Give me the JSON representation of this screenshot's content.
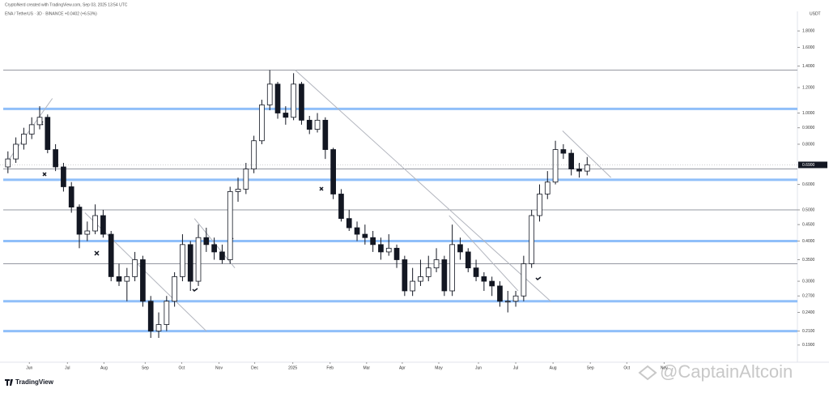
{
  "chart_data": {
    "type": "candlestick",
    "header": "CryptoNerd created with TradingView.com, Sep 03, 2025 13:54 UTC",
    "symbol_info": "ENA / TetherUS · 3D · BINANCE +0.0402 (+6.53%)",
    "currency": "USDT",
    "watermark": "@CaptainAltcoin",
    "logo": "TradingView",
    "log_scale": true,
    "grid": false,
    "up_color": "#ffffff",
    "down_color": "#131722",
    "open": [
      0.68,
      0.72,
      0.8,
      0.86,
      0.92,
      0.97,
      0.77,
      0.68,
      0.59,
      0.51,
      0.42,
      0.43,
      0.48,
      0.42,
      0.31,
      0.3,
      0.31,
      0.35,
      0.26,
      0.21,
      0.22,
      0.26,
      0.31,
      0.39,
      0.3,
      0.41,
      0.39,
      0.37,
      0.35,
      0.57,
      0.58,
      0.67,
      0.82,
      1.06,
      1.23,
      1.0,
      0.97,
      1.23,
      0.95,
      0.89,
      0.95,
      0.77,
      0.56,
      0.47,
      0.44,
      0.42,
      0.41,
      0.39,
      0.37,
      0.38,
      0.35,
      0.28,
      0.3,
      0.31,
      0.33,
      0.35,
      0.28,
      0.39,
      0.37,
      0.33,
      0.31,
      0.3,
      0.29,
      0.26,
      0.26,
      0.27,
      0.34,
      0.48,
      0.56,
      0.61,
      0.77,
      0.75,
      0.67,
      0.66
    ],
    "high": [
      0.76,
      0.84,
      0.9,
      0.97,
      1.05,
      0.99,
      0.8,
      0.7,
      0.61,
      0.52,
      0.46,
      0.52,
      0.5,
      0.43,
      0.34,
      0.33,
      0.37,
      0.36,
      0.27,
      0.24,
      0.27,
      0.32,
      0.42,
      0.4,
      0.45,
      0.44,
      0.41,
      0.39,
      0.59,
      0.63,
      0.7,
      0.85,
      1.1,
      1.36,
      1.25,
      1.05,
      1.33,
      1.25,
      0.98,
      1.0,
      0.97,
      0.78,
      0.58,
      0.5,
      0.46,
      0.45,
      0.43,
      0.41,
      0.42,
      0.39,
      0.36,
      0.33,
      0.35,
      0.36,
      0.38,
      0.36,
      0.45,
      0.41,
      0.38,
      0.35,
      0.32,
      0.31,
      0.3,
      0.28,
      0.28,
      0.36,
      0.5,
      0.6,
      0.66,
      0.82,
      0.8,
      0.77,
      0.7,
      0.73
    ],
    "low": [
      0.65,
      0.7,
      0.77,
      0.83,
      0.89,
      0.75,
      0.66,
      0.57,
      0.49,
      0.38,
      0.4,
      0.42,
      0.41,
      0.3,
      0.29,
      0.26,
      0.3,
      0.25,
      0.2,
      0.2,
      0.21,
      0.25,
      0.3,
      0.28,
      0.29,
      0.37,
      0.35,
      0.34,
      0.34,
      0.53,
      0.56,
      0.65,
      0.8,
      1.02,
      0.96,
      0.92,
      0.95,
      0.92,
      0.86,
      0.87,
      0.72,
      0.54,
      0.46,
      0.43,
      0.4,
      0.39,
      0.37,
      0.35,
      0.36,
      0.33,
      0.27,
      0.27,
      0.29,
      0.3,
      0.32,
      0.27,
      0.27,
      0.35,
      0.32,
      0.3,
      0.28,
      0.27,
      0.25,
      0.24,
      0.25,
      0.26,
      0.33,
      0.46,
      0.54,
      0.6,
      0.72,
      0.64,
      0.63,
      0.64
    ],
    "close": [
      0.72,
      0.8,
      0.86,
      0.92,
      0.97,
      0.77,
      0.68,
      0.59,
      0.51,
      0.42,
      0.43,
      0.48,
      0.42,
      0.31,
      0.3,
      0.31,
      0.35,
      0.26,
      0.21,
      0.22,
      0.26,
      0.31,
      0.39,
      0.3,
      0.41,
      0.39,
      0.37,
      0.35,
      0.57,
      0.58,
      0.67,
      0.82,
      1.06,
      1.23,
      1.0,
      0.97,
      1.23,
      0.95,
      0.89,
      0.95,
      0.77,
      0.56,
      0.47,
      0.44,
      0.42,
      0.41,
      0.39,
      0.37,
      0.38,
      0.35,
      0.28,
      0.3,
      0.31,
      0.33,
      0.35,
      0.28,
      0.39,
      0.37,
      0.33,
      0.31,
      0.3,
      0.29,
      0.26,
      0.26,
      0.27,
      0.34,
      0.48,
      0.56,
      0.61,
      0.77,
      0.75,
      0.67,
      0.66,
      0.69
    ],
    "ylim": [
      0.17,
      2.0
    ],
    "yticks": [
      {
        "value": 1.8,
        "label": "1.8000"
      },
      {
        "value": 1.6,
        "label": "1.6000"
      },
      {
        "value": 1.4,
        "label": "1.4000"
      },
      {
        "value": 1.2,
        "label": "1.2000"
      },
      {
        "value": 1.0,
        "label": "1.0000"
      },
      {
        "value": 0.9,
        "label": "0.9000"
      },
      {
        "value": 0.8,
        "label": "0.8000"
      },
      {
        "value": 0.6,
        "label": "0.6000"
      },
      {
        "value": 0.5,
        "label": "0.5000"
      },
      {
        "value": 0.45,
        "label": "0.4500"
      },
      {
        "value": 0.4,
        "label": "0.4000"
      },
      {
        "value": 0.35,
        "label": "0.3500"
      },
      {
        "value": 0.3,
        "label": "0.3000"
      },
      {
        "value": 0.27,
        "label": "0.2700"
      },
      {
        "value": 0.24,
        "label": "0.2400"
      },
      {
        "value": 0.21,
        "label": "0.2100"
      },
      {
        "value": 0.19,
        "label": "0.1900"
      }
    ],
    "xlim": [
      -1,
      99.5
    ],
    "xticks": [
      {
        "value": 2.7,
        "label": "Jun"
      },
      {
        "value": 7.5,
        "label": "Jul"
      },
      {
        "value": 12.1,
        "label": "Aug"
      },
      {
        "value": 17.3,
        "label": "Sep"
      },
      {
        "value": 21.9,
        "label": "Oct"
      },
      {
        "value": 26.6,
        "label": "Nov"
      },
      {
        "value": 31.1,
        "label": "Dec"
      },
      {
        "value": 35.9,
        "label": "2025"
      },
      {
        "value": 40.6,
        "label": "Feb"
      },
      {
        "value": 45.2,
        "label": "Mar"
      },
      {
        "value": 49.7,
        "label": "Apr"
      },
      {
        "value": 54.3,
        "label": "May"
      },
      {
        "value": 59.3,
        "label": "Jun"
      },
      {
        "value": 64,
        "label": "Jul"
      },
      {
        "value": 68.7,
        "label": "Aug"
      },
      {
        "value": 73.4,
        "label": "Sep"
      },
      {
        "value": 78,
        "label": "Oct"
      },
      {
        "value": 82.7,
        "label": "Nov"
      }
    ],
    "last_price": {
      "value": 0.69,
      "label": "0.6900"
    },
    "levels": [
      {
        "value": 1.36,
        "color": "#9598a1"
      },
      {
        "value": 1.03,
        "color": "#90bff9"
      },
      {
        "value": 0.67,
        "color": "#9598a1"
      },
      {
        "value": 0.62,
        "color": "#90bff9"
      },
      {
        "value": 0.5,
        "color": "#9598a1"
      },
      {
        "value": 0.4,
        "color": "#90bff9"
      },
      {
        "value": 0.34,
        "color": "#9598a1"
      },
      {
        "value": 0.26,
        "color": "#90bff9"
      },
      {
        "value": 0.21,
        "color": "#90bff9"
      }
    ],
    "trendlines": [
      {
        "x": [
          0,
          5.6
        ],
        "y": [
          0.71,
          1.11
        ]
      },
      {
        "x": [
          9.7,
          25.0
        ],
        "y": [
          0.49,
          0.21
        ]
      },
      {
        "x": [
          23.5,
          28.6
        ],
        "y": [
          0.47,
          0.33
        ]
      },
      {
        "x": [
          36.2,
          68.4
        ],
        "y": [
          1.36,
          0.26
        ]
      },
      {
        "x": [
          55.6,
          64.3
        ],
        "y": [
          0.48,
          0.28
        ]
      },
      {
        "x": [
          69.9,
          76
        ],
        "y": [
          0.88,
          0.63
        ]
      }
    ]
  }
}
